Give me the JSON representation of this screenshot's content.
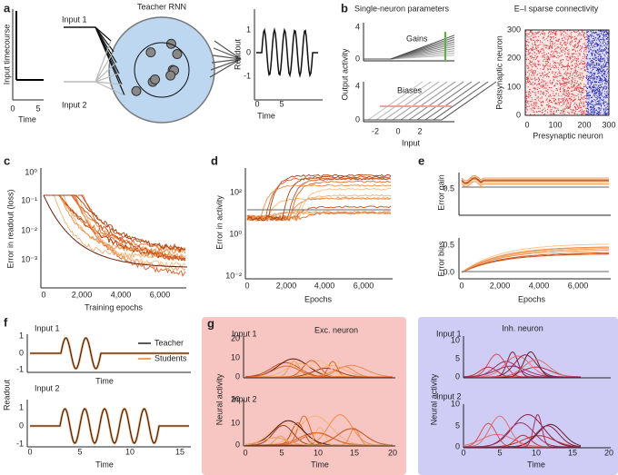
{
  "panels": {
    "a": {
      "label": "a",
      "title": "Teacher RNN",
      "input1": "Input 1",
      "input2": "Input 2",
      "left_ylabel": "Input timecourse",
      "left_xlabel": "Time",
      "left_xticks": [
        "0",
        "5"
      ],
      "right_ylabel": "Readout",
      "right_yticks": [
        "1",
        "0",
        "-1"
      ],
      "right_xlabel": "Time",
      "right_xticks": [
        "0",
        "5"
      ]
    },
    "b": {
      "label": "b",
      "title_left": "Single-neuron parameters",
      "gains": "Gains",
      "biases": "Biases",
      "ylabel": "Output activity",
      "yticks_top": [
        "4",
        "0"
      ],
      "yticks_bottom": [
        "4",
        "0"
      ],
      "xticks": [
        "-2",
        "0",
        "2"
      ],
      "xlabel": "Input",
      "title_right": "E–I sparse connectivity",
      "heat_yticks": [
        "300",
        "200",
        "100",
        "0"
      ],
      "heat_xticks": [
        "0",
        "100",
        "200",
        "300"
      ],
      "heat_xlabel": "Presynaptic neuron",
      "heat_ylabel": "Postsynaptic neuron"
    },
    "c": {
      "label": "c",
      "ylabel": "Error in readout (loss)",
      "yticks": [
        "10⁰",
        "10⁻¹",
        "10⁻²",
        "10⁻³"
      ],
      "xticks": [
        "0",
        "2,000",
        "4,000",
        "6,000"
      ],
      "xlabel": "Training epochs"
    },
    "d": {
      "label": "d",
      "ylabel": "Error in activity",
      "yticks": [
        "10²",
        "10⁰",
        "10⁻²"
      ],
      "xticks": [
        "0",
        "2,000",
        "4,000",
        "6,000"
      ],
      "xlabel": "Epochs"
    },
    "e": {
      "label": "e",
      "ylabel_top": "Error gain",
      "yticks_top": [
        "0.5"
      ],
      "ylabel_bottom": "Error bias",
      "yticks_bottom": [
        "0.5",
        "0.0"
      ],
      "xticks": [
        "0",
        "2,000",
        "4,000",
        "6,000"
      ],
      "xlabel": "Epochs"
    },
    "f": {
      "label": "f",
      "input1": "Input 1",
      "input2": "Input 2",
      "ylabel": "Readout",
      "yticks_top": [
        "1",
        "0",
        "-1"
      ],
      "yticks_bottom": [
        "1",
        "0",
        "-1"
      ],
      "xlabel_top": "Time",
      "xlabel_bottom": "Time",
      "xticks": [
        "0",
        "5",
        "10",
        "15"
      ],
      "legend": [
        "Teacher",
        "Students"
      ]
    },
    "g": {
      "label": "g",
      "exc_title": "Exc. neuron",
      "inh_title": "Inh. neuron",
      "input1": "Input 1",
      "input2": "Input 2",
      "ylabel": "Neural activity",
      "exc_yticks_top": [
        "20",
        "10",
        "0"
      ],
      "exc_yticks_bottom": [
        "20",
        "10",
        "0"
      ],
      "inh_yticks_top": [
        "10",
        "5",
        "0"
      ],
      "inh_yticks_bottom": [
        "10",
        "5",
        "0"
      ],
      "xticks": [
        "0",
        "5",
        "10",
        "15",
        "20"
      ],
      "xlabel": "Time"
    }
  }
}
